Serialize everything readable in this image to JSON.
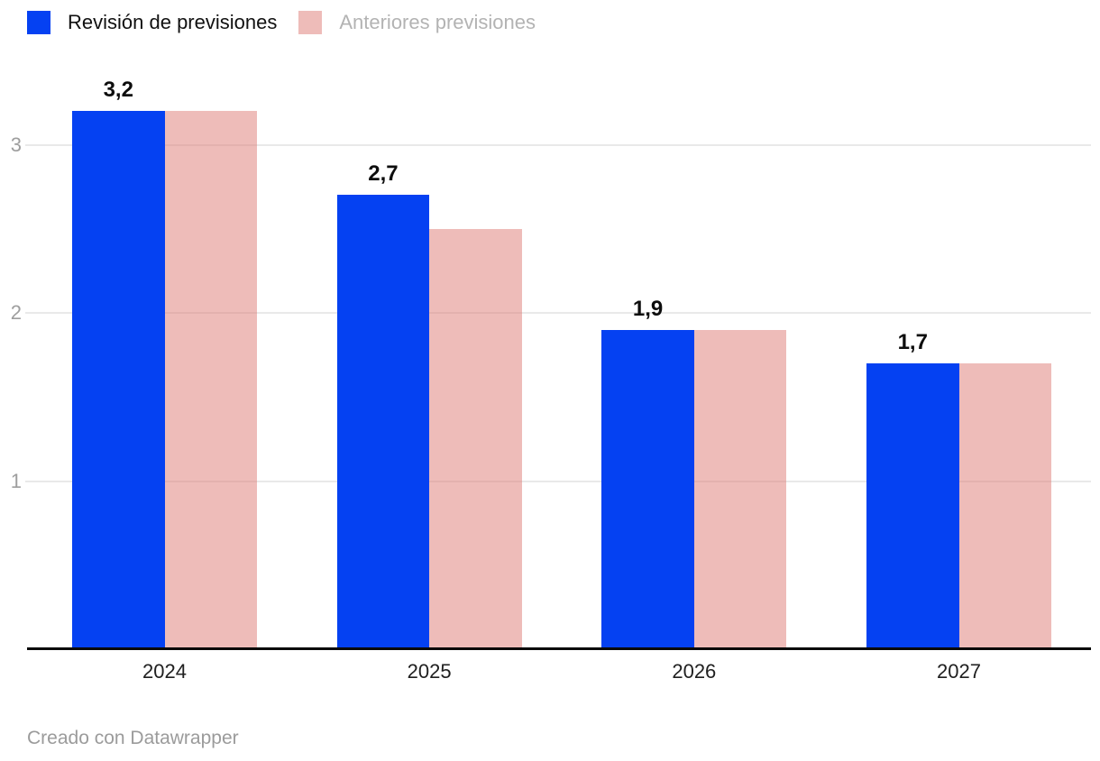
{
  "legend": {
    "items": [
      {
        "label": "Revisión de previsiones"
      },
      {
        "label": "Anteriores previsiones"
      }
    ]
  },
  "footer": {
    "attribution": "Creado con Datawrapper"
  },
  "colors": {
    "revision_blue": "#0541F2",
    "anterior_pink": "rgba(222,121,115,0.5)",
    "anterior_pink_on_white": "#EEBBB9",
    "gridline": "#E9E9E9",
    "axis_line": "#0A0A0A",
    "ytick_text": "#9E9E9E",
    "xlabel_text": "#202020",
    "value_label_text": "#0D0D0D",
    "legend_muted_text": "#B3B3B3",
    "footer_text": "#9B9B9B"
  },
  "chart_data": {
    "type": "bar",
    "title": "",
    "xlabel": "",
    "ylabel": "",
    "categories": [
      "2024",
      "2025",
      "2026",
      "2027"
    ],
    "series": [
      {
        "name": "Revisión de previsiones",
        "values": [
          3.2,
          2.7,
          1.9,
          1.7
        ]
      },
      {
        "name": "Anteriores previsiones",
        "values": [
          3.2,
          2.5,
          1.9,
          1.7
        ]
      }
    ],
    "bar_labels": [
      "3,2",
      "2,7",
      "1,9",
      "1,7"
    ],
    "yticks": [
      1,
      2,
      3
    ],
    "ylim": [
      0,
      3.5
    ],
    "grid": true,
    "legend_position": "top-left",
    "value_decimal_separator": ","
  }
}
